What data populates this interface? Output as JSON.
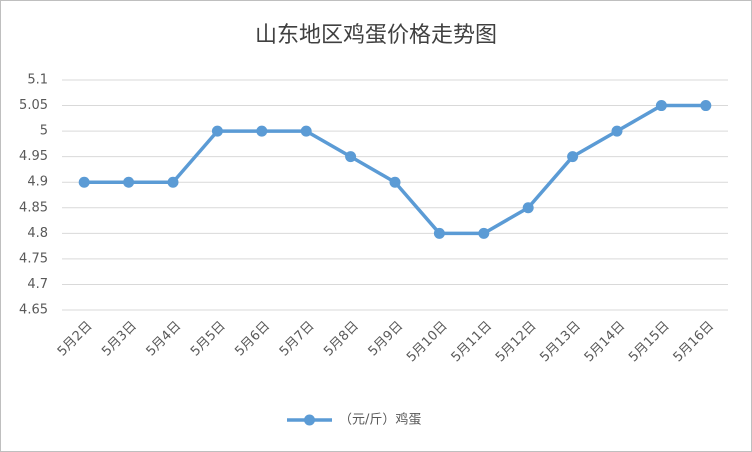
{
  "chart_data": {
    "type": "line",
    "title": "山东地区鸡蛋价格走势图",
    "categories": [
      "5月2日",
      "5月3日",
      "5月4日",
      "5月5日",
      "5月6日",
      "5月7日",
      "5月8日",
      "5月9日",
      "5月10日",
      "5月11日",
      "5月12日",
      "5月13日",
      "5月14日",
      "5月15日",
      "5月16日"
    ],
    "series": [
      {
        "name": "（元/斤）鸡蛋",
        "color": "#5b9bd5",
        "values": [
          4.9,
          4.9,
          4.9,
          5,
          5,
          5,
          4.95,
          4.9,
          4.8,
          4.8,
          4.85,
          4.95,
          5,
          5.05,
          5.05
        ]
      }
    ],
    "ylim": [
      4.65,
      5.1
    ],
    "yticks": [
      4.65,
      4.7,
      4.75,
      4.8,
      4.85,
      4.9,
      4.95,
      5,
      5.05,
      5.1
    ],
    "grid": true,
    "legend": "bottom"
  }
}
